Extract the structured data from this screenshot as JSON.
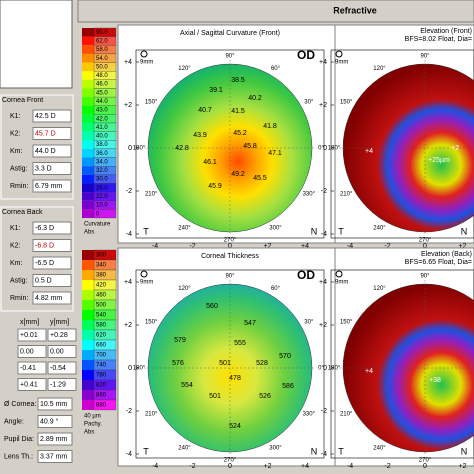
{
  "header": {
    "title": "Refractive"
  },
  "left_panel": {
    "cornea_front": {
      "title": "Cornea Front",
      "rows": [
        {
          "label": "K1:",
          "value": "42.5 D"
        },
        {
          "label": "K2:",
          "value": "45.7 D"
        },
        {
          "label": "Km:",
          "value": "44.0 D"
        },
        {
          "label": "Astig:",
          "value": "3.3 D"
        },
        {
          "label": "Rmin:",
          "value": "6.79 mm"
        }
      ]
    },
    "cornea_back": {
      "title": "Cornea Back",
      "rows": [
        {
          "label": "K1:",
          "value": "-6.3 D"
        },
        {
          "label": "K2:",
          "value": "-6.8 D"
        },
        {
          "label": "Km:",
          "value": "-6.5 D"
        },
        {
          "label": "Astig:",
          "value": "0.5 D"
        },
        {
          "label": "Rmin:",
          "value": "4.82 mm"
        }
      ]
    },
    "coords": {
      "headers": [
        "x[mm]",
        "y[mm]"
      ],
      "rows": [
        [
          "+0.01",
          "+0.28"
        ],
        [
          "0.00",
          "0.00"
        ],
        [
          "-0.41",
          "-0.54"
        ],
        [
          "+0.41",
          "-1.29"
        ]
      ]
    },
    "misc": [
      {
        "label": "Ø Cornea:",
        "value": "10.5 mm"
      },
      {
        "label": "Angle:",
        "value": "40.9 °"
      },
      {
        "label": "Pupil Dia:",
        "value": "2.89 mm"
      },
      {
        "label": "Lens Th.:",
        "value": "3.37 mm"
      }
    ]
  },
  "scales": [
    {
      "labels": [
        "90.0",
        "62.0",
        "58.0",
        "54.0",
        "50.0",
        "48.0",
        "46.0",
        "45.0",
        "44.0",
        "43.0",
        "42.0",
        "41.0",
        "40.0",
        "38.0",
        "36.0",
        "34.0",
        "32.0",
        "30.0",
        "26.0",
        "22.0",
        "10.0",
        "0"
      ],
      "footer": [
        "Curvature",
        "Abs"
      ]
    },
    {
      "labels": [
        "300",
        "340",
        "380",
        "420",
        "460",
        "500",
        "540",
        "580",
        "620",
        "660",
        "700",
        "740",
        "780",
        "820",
        "860",
        "880"
      ],
      "footer": [
        "40 µm",
        "Pachy.",
        "Abs"
      ]
    }
  ],
  "axis": {
    "y_labels": [
      "+4",
      "+2",
      "0",
      "-2",
      "-4"
    ],
    "x_labels": [
      "-4",
      "-2",
      "0",
      "+2",
      "+4"
    ],
    "sides": [
      "T",
      "N"
    ],
    "angles": [
      "90°",
      "120°",
      "60°",
      "150°",
      "30°",
      "180°",
      "0°",
      "210°",
      "330°",
      "240°",
      "300°",
      "270°"
    ]
  },
  "maps": [
    {
      "title": "Axial / Sagittal Curvature (Front)",
      "eye": "OD",
      "zoom": "9mm",
      "values": [
        "38.5",
        "39.1",
        "40.2",
        "40.7",
        "41.5",
        "41.8",
        "43.9",
        "45.2",
        "42.8",
        "45.8",
        "47.1",
        "46.1",
        "49.2",
        "45.9",
        "45.5"
      ]
    },
    {
      "title": "Elevation (Front)",
      "subtitle": "BFS=8.02 Float, Dia=",
      "zoom": "9mm",
      "values": [
        "+4",
        "+25µm",
        "+2"
      ]
    },
    {
      "title": "Corneal Thickness",
      "eye": "OD",
      "zoom": "9mm",
      "values": [
        "560",
        "547",
        "555",
        "579",
        "576",
        "501",
        "528",
        "570",
        "554",
        "478",
        "501",
        "586",
        "526",
        "524"
      ]
    },
    {
      "title": "Elevation (Back)",
      "subtitle": "BFS=6.65 Float, Dia=",
      "zoom": "9mm",
      "values": [
        "+38",
        "+35",
        "+4"
      ]
    }
  ]
}
